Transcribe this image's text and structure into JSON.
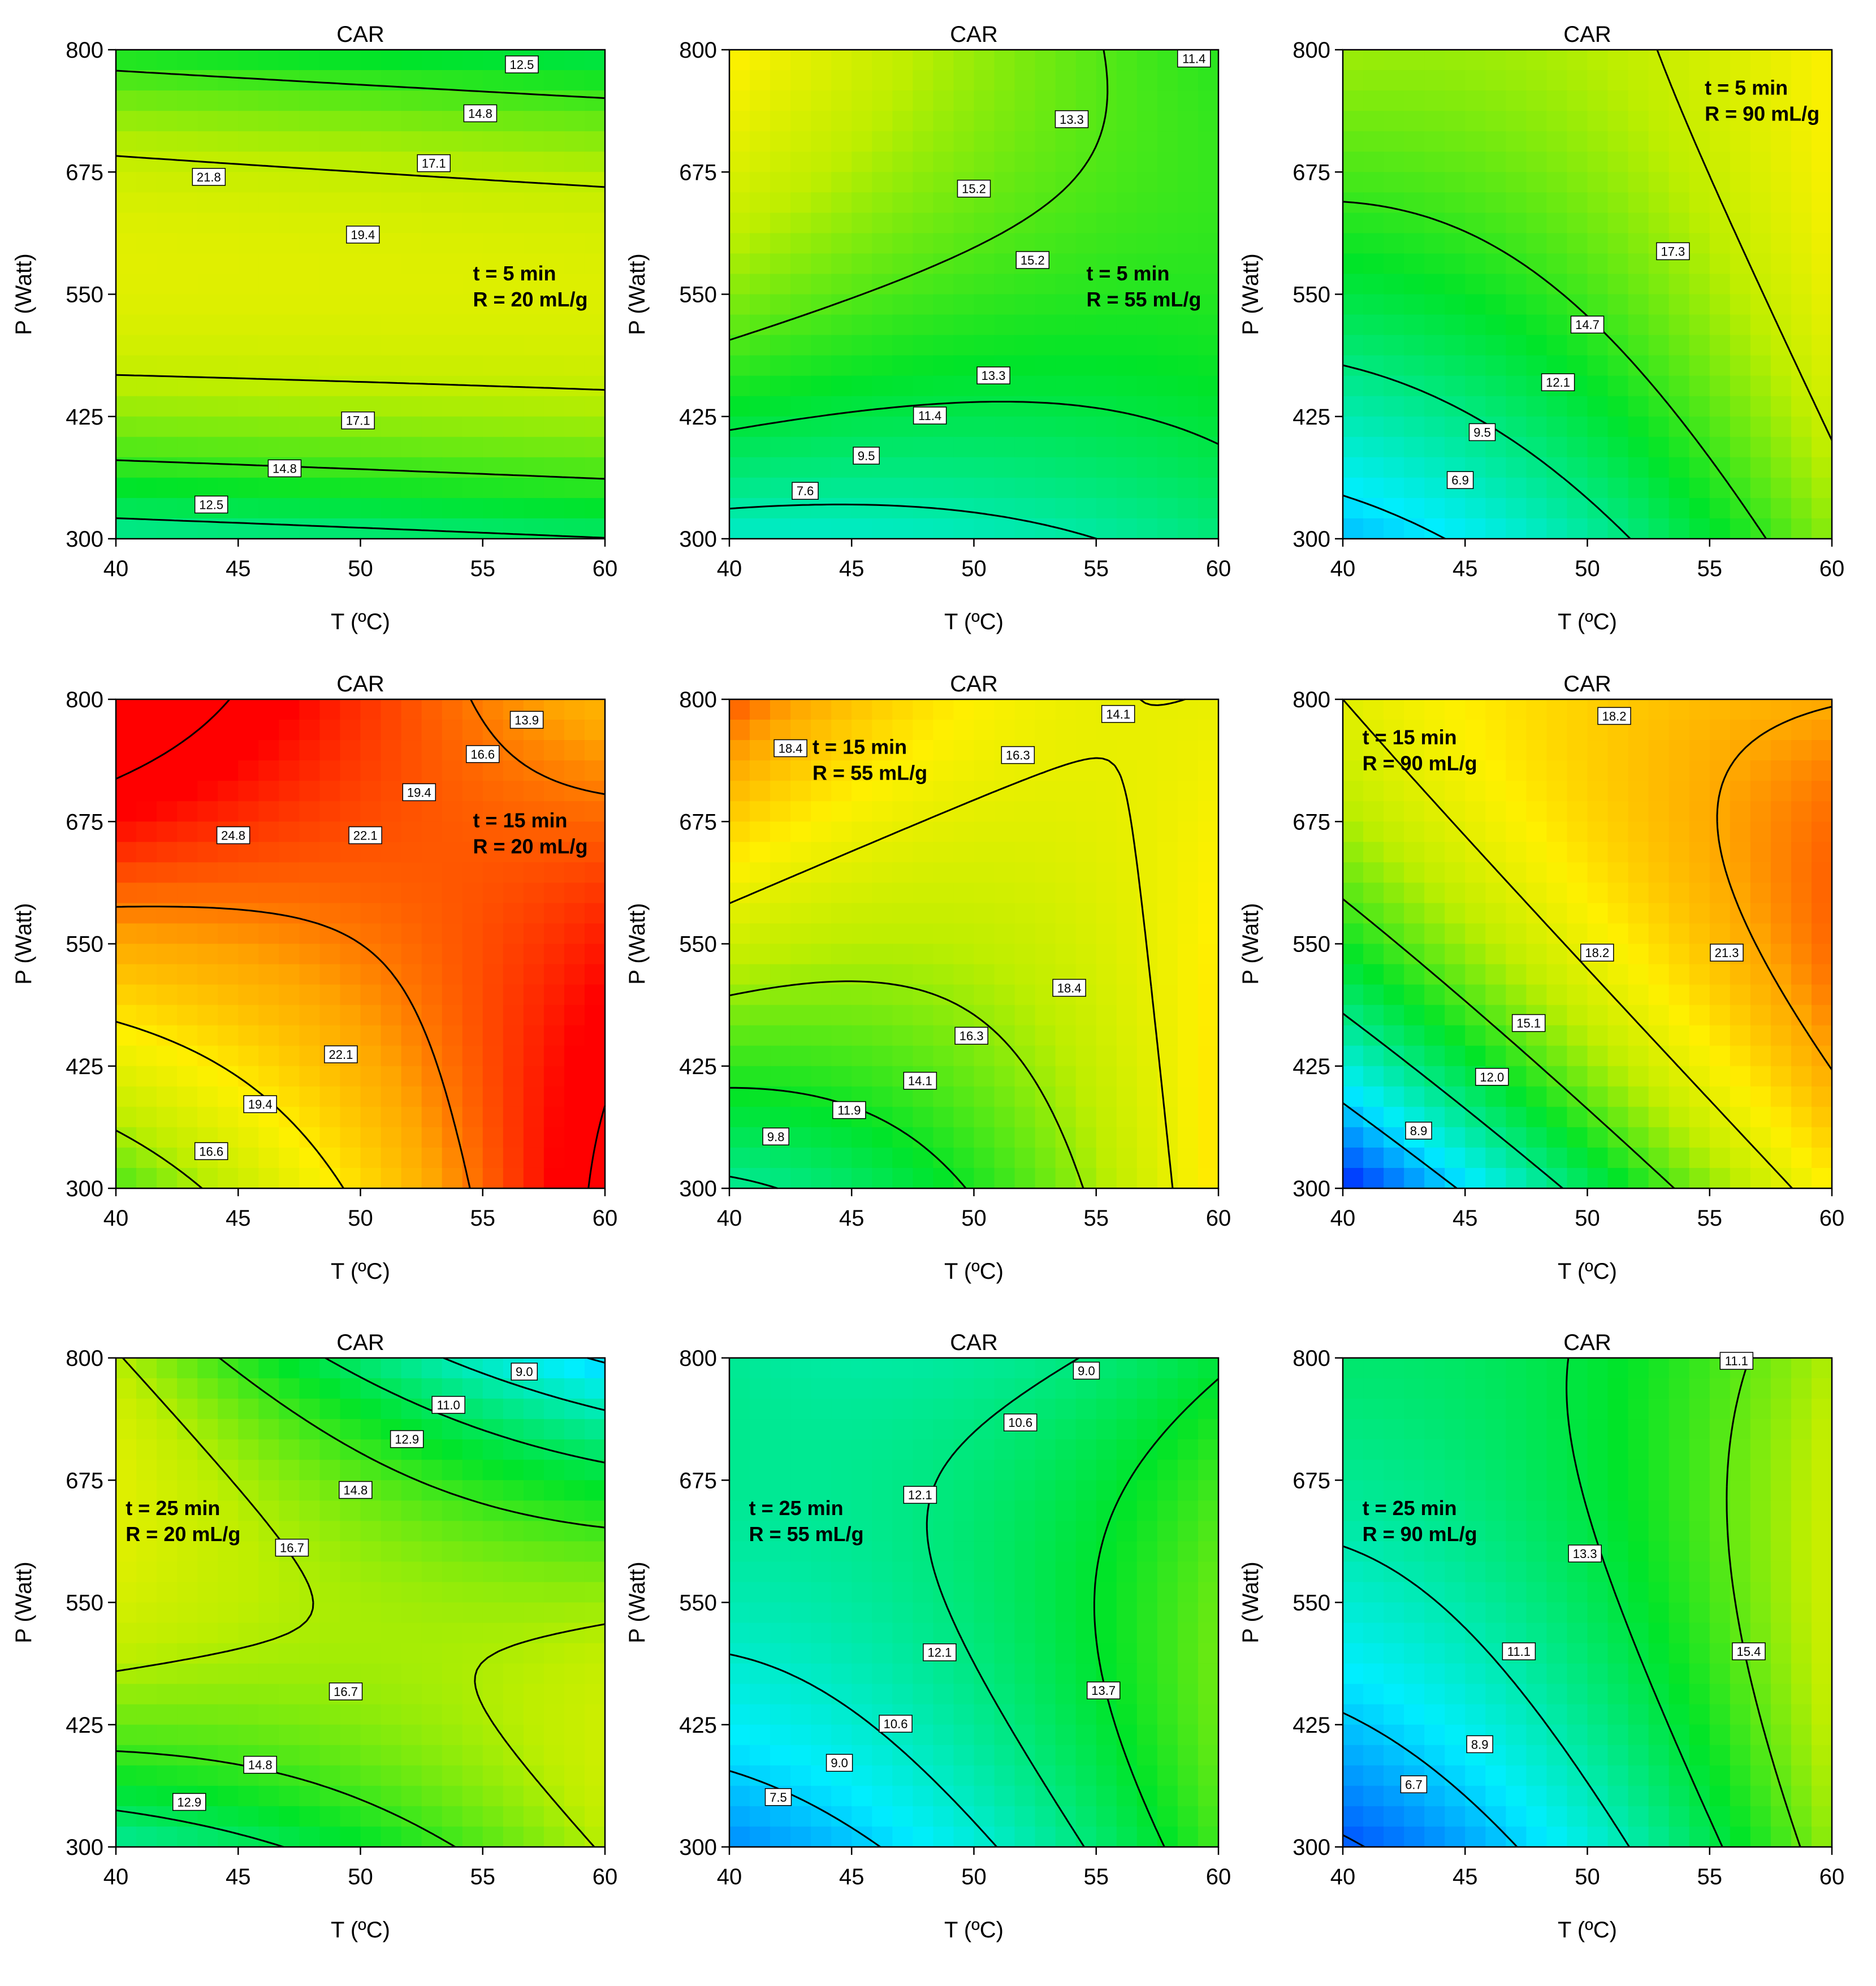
{
  "chart_data": [
    {
      "type": "heatmap",
      "title": "CAR",
      "t_label": "t = 5 min",
      "r_label": "R = 20 mL/g",
      "xlabel": "T (ºC)",
      "ylabel": "P (Watt)",
      "xlim": [
        40,
        60
      ],
      "ylim": [
        300,
        800
      ],
      "xticks": [
        "40",
        "45",
        "50",
        "55",
        "60"
      ],
      "yticks": [
        "300",
        "425",
        "550",
        "675",
        "800"
      ],
      "contour_levels": [
        "12.5",
        "14.8",
        "17.1",
        "19.4",
        "21.8"
      ],
      "contour_labels": [
        {
          "text": "12.5",
          "x": 56.6,
          "y": 785
        },
        {
          "text": "14.8",
          "x": 54.9,
          "y": 735
        },
        {
          "text": "17.1",
          "x": 53.0,
          "y": 684
        },
        {
          "text": "19.4",
          "x": 50.1,
          "y": 611
        },
        {
          "text": "21.8",
          "x": 43.8,
          "y": 670
        },
        {
          "text": "17.1",
          "x": 49.9,
          "y": 421
        },
        {
          "text": "14.8",
          "x": 46.9,
          "y": 372
        },
        {
          "text": "12.5",
          "x": 43.9,
          "y": 335
        }
      ]
    },
    {
      "type": "heatmap",
      "title": "CAR",
      "t_label": "t = 5 min",
      "r_label": "R = 55 mL/g",
      "xlabel": "T (ºC)",
      "ylabel": "P (Watt)",
      "xlim": [
        40,
        60
      ],
      "ylim": [
        300,
        800
      ],
      "xticks": [
        "40",
        "45",
        "50",
        "55",
        "60"
      ],
      "yticks": [
        "300",
        "425",
        "550",
        "675",
        "800"
      ],
      "contour_levels": [
        "7.6",
        "9.5",
        "11.4",
        "13.3",
        "15.2"
      ],
      "contour_labels": [
        {
          "text": "11.4",
          "x": 59.0,
          "y": 791
        },
        {
          "text": "13.3",
          "x": 54.0,
          "y": 729
        },
        {
          "text": "15.2",
          "x": 50.0,
          "y": 658
        },
        {
          "text": "15.2",
          "x": 52.4,
          "y": 585
        },
        {
          "text": "13.3",
          "x": 50.8,
          "y": 467
        },
        {
          "text": "11.4",
          "x": 48.2,
          "y": 426
        },
        {
          "text": "9.5",
          "x": 45.6,
          "y": 385
        },
        {
          "text": "7.6",
          "x": 43.1,
          "y": 349
        }
      ]
    },
    {
      "type": "heatmap",
      "title": "CAR",
      "t_label": "t = 5 min",
      "r_label": "R = 90 mL/g",
      "xlabel": "T (ºC)",
      "ylabel": "P (Watt)",
      "xlim": [
        40,
        60
      ],
      "ylim": [
        300,
        800
      ],
      "xticks": [
        "40",
        "45",
        "50",
        "55",
        "60"
      ],
      "yticks": [
        "300",
        "425",
        "550",
        "675",
        "800"
      ],
      "contour_levels": [
        "6.9",
        "9.5",
        "12.1",
        "14.7",
        "17.3"
      ],
      "contour_labels": [
        {
          "text": "17.3",
          "x": 53.5,
          "y": 594
        },
        {
          "text": "14.7",
          "x": 50.0,
          "y": 519
        },
        {
          "text": "12.1",
          "x": 48.8,
          "y": 460
        },
        {
          "text": "9.5",
          "x": 45.7,
          "y": 409
        },
        {
          "text": "6.9",
          "x": 44.8,
          "y": 360
        }
      ]
    },
    {
      "type": "heatmap",
      "title": "CAR",
      "t_label": "t = 15 min",
      "r_label": "R = 20 mL/g",
      "xlabel": "T (ºC)",
      "ylabel": "P (Watt)",
      "xlim": [
        40,
        60
      ],
      "ylim": [
        300,
        800
      ],
      "xticks": [
        "40",
        "45",
        "50",
        "55",
        "60"
      ],
      "yticks": [
        "300",
        "425",
        "550",
        "675",
        "800"
      ],
      "contour_levels": [
        "13.9",
        "16.6",
        "19.4",
        "22.1",
        "24.8"
      ],
      "contour_labels": [
        {
          "text": "13.9",
          "x": 56.8,
          "y": 779
        },
        {
          "text": "16.6",
          "x": 55.0,
          "y": 744
        },
        {
          "text": "19.4",
          "x": 52.4,
          "y": 705
        },
        {
          "text": "22.1",
          "x": 50.2,
          "y": 661
        },
        {
          "text": "24.8",
          "x": 44.8,
          "y": 661
        },
        {
          "text": "22.1",
          "x": 49.2,
          "y": 437
        },
        {
          "text": "19.4",
          "x": 45.9,
          "y": 386
        },
        {
          "text": "16.6",
          "x": 43.9,
          "y": 338
        }
      ]
    },
    {
      "type": "heatmap",
      "title": "CAR",
      "t_label": "t = 15 min",
      "r_label": "R = 55 mL/g",
      "xlabel": "T (ºC)",
      "ylabel": "P (Watt)",
      "xlim": [
        40,
        60
      ],
      "ylim": [
        300,
        800
      ],
      "xticks": [
        "40",
        "45",
        "50",
        "55",
        "60"
      ],
      "yticks": [
        "300",
        "425",
        "550",
        "675",
        "800"
      ],
      "contour_levels": [
        "9.8",
        "11.9",
        "14.1",
        "16.3",
        "18.4"
      ],
      "contour_labels": [
        {
          "text": "14.1",
          "x": 55.9,
          "y": 785
        },
        {
          "text": "16.3",
          "x": 51.8,
          "y": 743
        },
        {
          "text": "18.4",
          "x": 42.5,
          "y": 750
        },
        {
          "text": "18.4",
          "x": 53.9,
          "y": 505
        },
        {
          "text": "16.3",
          "x": 49.9,
          "y": 456
        },
        {
          "text": "14.1",
          "x": 47.8,
          "y": 410
        },
        {
          "text": "11.9",
          "x": 44.9,
          "y": 380
        },
        {
          "text": "9.8",
          "x": 41.9,
          "y": 353
        }
      ]
    },
    {
      "type": "heatmap",
      "title": "CAR",
      "t_label": "t = 15 min",
      "r_label": "R = 90 mL/g",
      "xlabel": "T (ºC)",
      "ylabel": "P (Watt)",
      "xlim": [
        40,
        60
      ],
      "ylim": [
        300,
        800
      ],
      "xticks": [
        "40",
        "45",
        "50",
        "55",
        "60"
      ],
      "yticks": [
        "300",
        "425",
        "550",
        "675",
        "800"
      ],
      "contour_levels": [
        "8.9",
        "12.0",
        "15.1",
        "18.2",
        "21.3"
      ],
      "contour_labels": [
        {
          "text": "18.2",
          "x": 51.1,
          "y": 783
        },
        {
          "text": "18.2",
          "x": 50.4,
          "y": 541
        },
        {
          "text": "21.3",
          "x": 55.7,
          "y": 541
        },
        {
          "text": "15.1",
          "x": 47.6,
          "y": 469
        },
        {
          "text": "12.0",
          "x": 46.1,
          "y": 414
        },
        {
          "text": "8.9",
          "x": 43.1,
          "y": 359
        }
      ]
    },
    {
      "type": "heatmap",
      "title": "CAR",
      "t_label": "t = 25 min",
      "r_label": "R = 20 mL/g",
      "xlabel": "T (ºC)",
      "ylabel": "P (Watt)",
      "xlim": [
        40,
        60
      ],
      "ylim": [
        300,
        800
      ],
      "xticks": [
        "40",
        "45",
        "50",
        "55",
        "60"
      ],
      "yticks": [
        "300",
        "425",
        "550",
        "675",
        "800"
      ],
      "contour_levels": [
        "9.0",
        "11.0",
        "12.9",
        "14.8",
        "16.7"
      ],
      "contour_labels": [
        {
          "text": "9.0",
          "x": 56.7,
          "y": 786
        },
        {
          "text": "11.0",
          "x": 53.6,
          "y": 752
        },
        {
          "text": "12.9",
          "x": 51.9,
          "y": 717
        },
        {
          "text": "14.8",
          "x": 49.8,
          "y": 665
        },
        {
          "text": "16.7",
          "x": 47.2,
          "y": 606
        },
        {
          "text": "16.7",
          "x": 49.4,
          "y": 459
        },
        {
          "text": "14.8",
          "x": 45.9,
          "y": 384
        },
        {
          "text": "12.9",
          "x": 43.0,
          "y": 346
        }
      ]
    },
    {
      "type": "heatmap",
      "title": "CAR",
      "t_label": "t = 25 min",
      "r_label": "R = 55 mL/g",
      "xlabel": "T (ºC)",
      "ylabel": "P (Watt)",
      "xlim": [
        40,
        60
      ],
      "ylim": [
        300,
        800
      ],
      "xticks": [
        "40",
        "45",
        "50",
        "55",
        "60"
      ],
      "yticks": [
        "300",
        "425",
        "550",
        "675",
        "800"
      ],
      "contour_levels": [
        "7.5",
        "9.0",
        "10.6",
        "12.1",
        "13.7"
      ],
      "contour_labels": [
        {
          "text": "9.0",
          "x": 54.6,
          "y": 787
        },
        {
          "text": "10.6",
          "x": 51.9,
          "y": 734
        },
        {
          "text": "12.1",
          "x": 47.8,
          "y": 660
        },
        {
          "text": "12.1",
          "x": 48.6,
          "y": 499
        },
        {
          "text": "13.7",
          "x": 55.3,
          "y": 460
        },
        {
          "text": "10.6",
          "x": 46.8,
          "y": 426
        },
        {
          "text": "9.0",
          "x": 44.5,
          "y": 386
        },
        {
          "text": "7.5",
          "x": 42.0,
          "y": 351
        }
      ]
    },
    {
      "type": "heatmap",
      "title": "CAR",
      "t_label": "t = 25 min",
      "r_label": "R = 90 mL/g",
      "xlabel": "T (ºC)",
      "ylabel": "P (Watt)",
      "xlim": [
        40,
        60
      ],
      "ylim": [
        300,
        800
      ],
      "xticks": [
        "40",
        "45",
        "50",
        "55",
        "60"
      ],
      "yticks": [
        "300",
        "425",
        "550",
        "675",
        "800"
      ],
      "contour_levels": [
        "6.7",
        "8.9",
        "11.1",
        "13.3",
        "15.4"
      ],
      "contour_labels": [
        {
          "text": "11.1",
          "x": 56.1,
          "y": 797
        },
        {
          "text": "13.3",
          "x": 49.9,
          "y": 600
        },
        {
          "text": "11.1",
          "x": 47.2,
          "y": 500
        },
        {
          "text": "15.4",
          "x": 56.6,
          "y": 500
        },
        {
          "text": "8.9",
          "x": 45.6,
          "y": 405
        },
        {
          "text": "6.7",
          "x": 42.9,
          "y": 364
        }
      ]
    }
  ]
}
